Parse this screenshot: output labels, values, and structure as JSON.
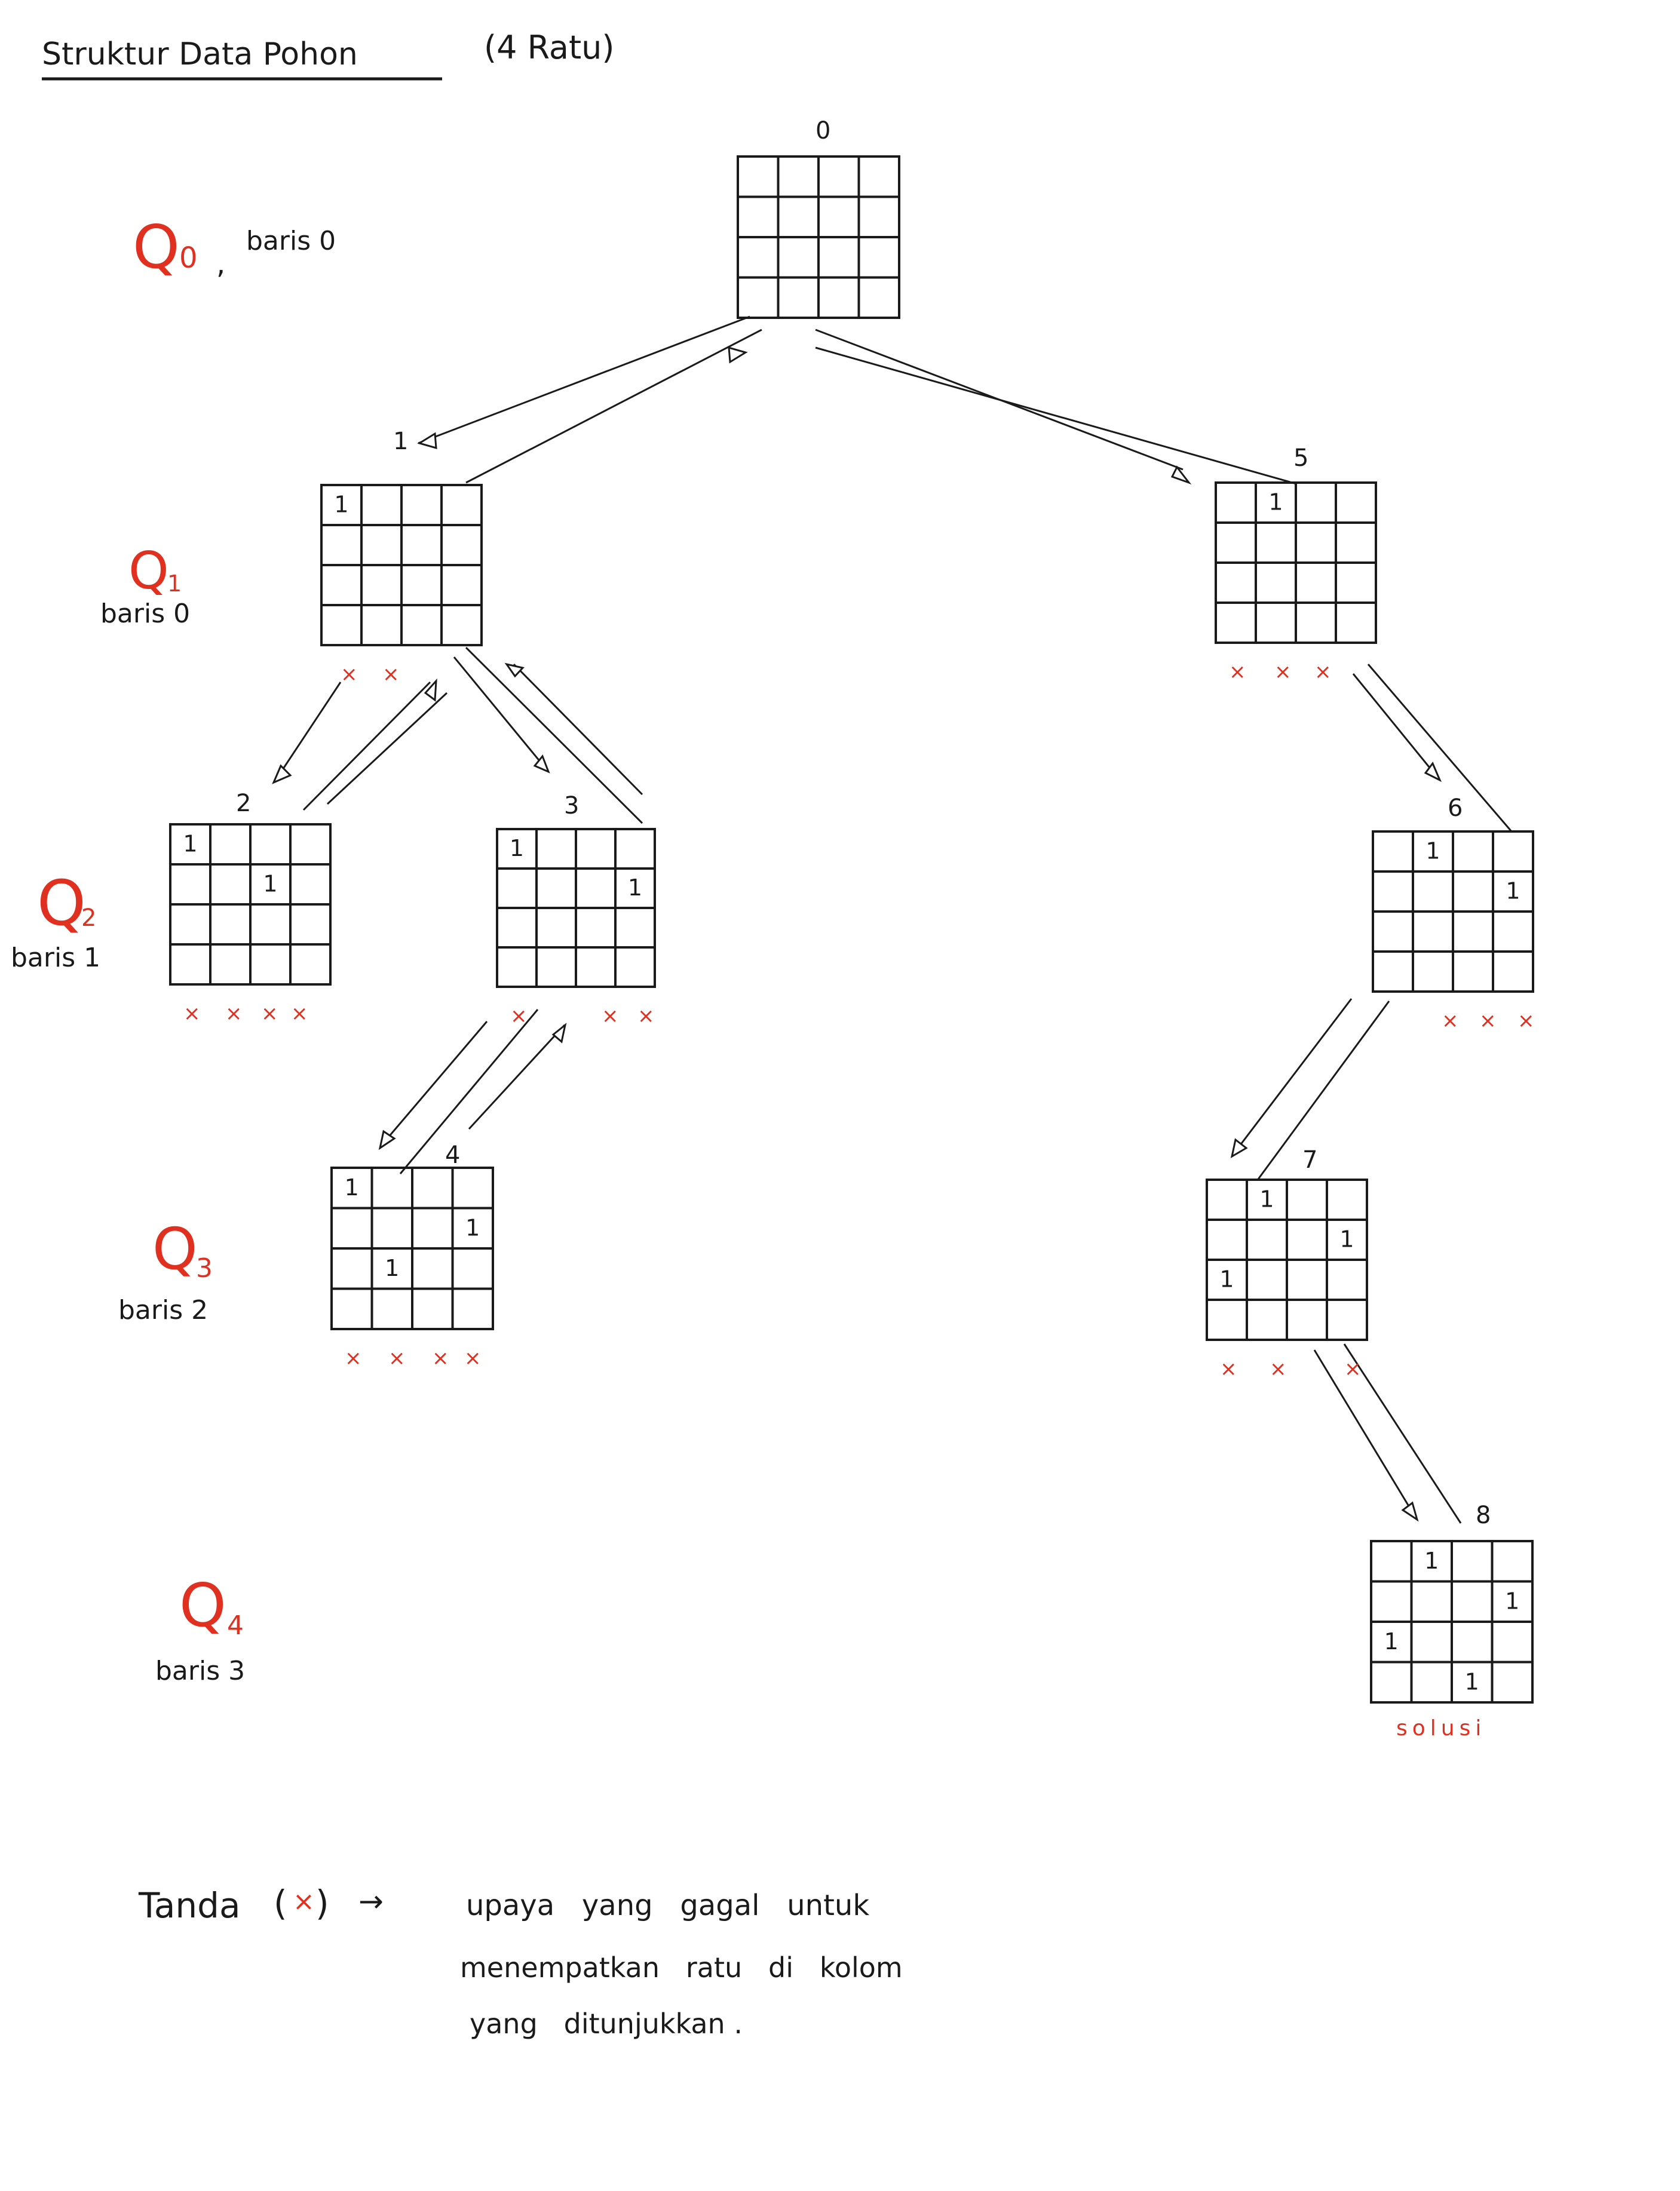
{
  "title": "Struktur Data Pohon",
  "title_note": "(4 Ratu)",
  "colors": {
    "ink": "#1a1a1a",
    "accent": "#e03020"
  },
  "levels": [
    {
      "q": "Q",
      "sub": "0",
      "sep": ",",
      "row": "baris 0"
    },
    {
      "q": "Q",
      "sub": "1",
      "row": "baris 0"
    },
    {
      "q": "Q",
      "sub": "2",
      "row": "baris 1"
    },
    {
      "q": "Q",
      "sub": "3",
      "row": "baris 2"
    },
    {
      "q": "Q",
      "sub": "4",
      "row": "baris 3"
    }
  ],
  "nodes": [
    {
      "id": "0",
      "label": "0",
      "queens": [],
      "marks": [],
      "note": ""
    },
    {
      "id": "1",
      "label": "1",
      "queens": [
        [
          0,
          0
        ]
      ],
      "marks": [
        "×",
        "×"
      ],
      "note": ""
    },
    {
      "id": "2",
      "label": "2",
      "queens": [
        [
          0,
          0
        ],
        [
          1,
          2
        ]
      ],
      "marks": [
        "×",
        "×",
        "×",
        "×"
      ],
      "note": ""
    },
    {
      "id": "3",
      "label": "3",
      "queens": [
        [
          0,
          0
        ],
        [
          1,
          3
        ]
      ],
      "marks": [
        "×",
        "×",
        "×"
      ],
      "note": ""
    },
    {
      "id": "4",
      "label": "4",
      "queens": [
        [
          0,
          0
        ],
        [
          1,
          3
        ],
        [
          2,
          1
        ]
      ],
      "marks": [
        "×",
        "×",
        "×",
        "×"
      ],
      "note": ""
    },
    {
      "id": "5",
      "label": "5",
      "queens": [
        [
          0,
          1
        ]
      ],
      "marks": [
        "×",
        "×",
        "×"
      ],
      "note": ""
    },
    {
      "id": "6",
      "label": "6",
      "queens": [
        [
          0,
          1
        ],
        [
          1,
          3
        ]
      ],
      "marks": [
        "×",
        "×",
        "×"
      ],
      "note": ""
    },
    {
      "id": "7",
      "label": "7",
      "queens": [
        [
          0,
          1
        ],
        [
          1,
          3
        ],
        [
          2,
          0
        ]
      ],
      "marks": [
        "×",
        "×",
        "×"
      ],
      "note": ""
    },
    {
      "id": "8",
      "label": "8",
      "queens": [
        [
          0,
          1
        ],
        [
          1,
          3
        ],
        [
          2,
          0
        ],
        [
          3,
          2
        ]
      ],
      "marks": [],
      "note": "solusi"
    }
  ],
  "queen_mark": "1",
  "legend": {
    "label": "Tanda",
    "symbol_open": "(",
    "symbol": "×",
    "symbol_close": ")",
    "arrow": "→",
    "text_line1": "upaya   yang   gagal   untuk",
    "text_line2": "menempatkan   ratu   di   kolom",
    "text_line3": "yang   ditunjukkan ."
  }
}
